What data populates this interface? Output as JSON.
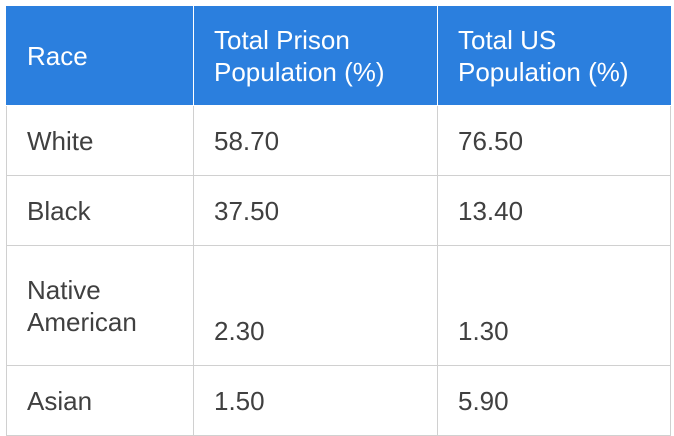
{
  "chart_data": {
    "type": "table",
    "columns": [
      "Race",
      "Total Prison Population (%)",
      "Total US Population (%)"
    ],
    "rows": [
      [
        "White",
        "58.70",
        "76.50"
      ],
      [
        "Black",
        "37.50",
        "13.40"
      ],
      [
        "Native American",
        "2.30",
        "1.30"
      ],
      [
        "Asian",
        "1.50",
        "5.90"
      ]
    ]
  },
  "colors": {
    "header_bg": "#2b7fde",
    "header_text": "#ffffff",
    "body_text": "#404040",
    "grid": "#d0d0d0"
  }
}
